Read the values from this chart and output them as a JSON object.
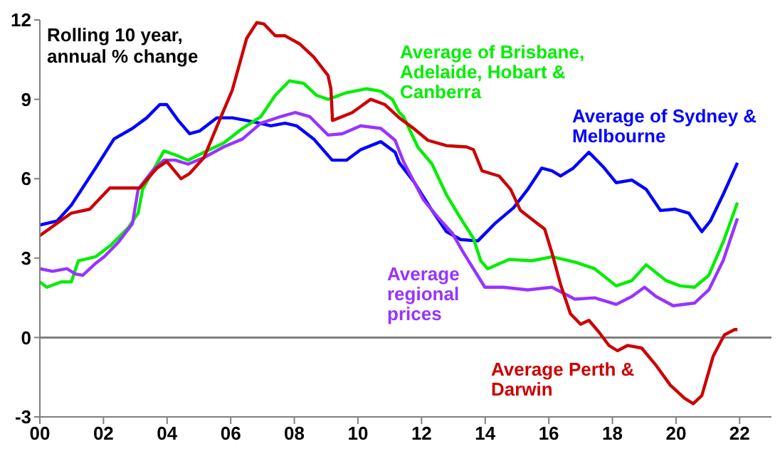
{
  "chart_data": {
    "type": "line",
    "title": "Rolling 10 year, annual % change",
    "xlim": [
      2000,
      2023
    ],
    "xticks": [
      {
        "value": 2000,
        "label": "00"
      },
      {
        "value": 2002,
        "label": "02"
      },
      {
        "value": 2004,
        "label": "04"
      },
      {
        "value": 2006,
        "label": "06"
      },
      {
        "value": 2008,
        "label": "08"
      },
      {
        "value": 2010,
        "label": "10"
      },
      {
        "value": 2012,
        "label": "12"
      },
      {
        "value": 2014,
        "label": "14"
      },
      {
        "value": 2016,
        "label": "16"
      },
      {
        "value": 2018,
        "label": "18"
      },
      {
        "value": 2020,
        "label": "20"
      },
      {
        "value": 2022,
        "label": "22"
      }
    ],
    "ylim": [
      -3,
      12
    ],
    "yticks": [
      -3,
      0,
      3,
      6,
      9,
      12
    ],
    "grid": false,
    "legend": false,
    "marker": "none",
    "line_style": "solid",
    "ref_lines": [
      {
        "axis": "y",
        "value": 0,
        "color": "#808080"
      }
    ],
    "series": [
      {
        "name": "Average of Sydney & Melbourne",
        "color": "#0000ff",
        "x": [
          2000,
          2000.54,
          2000.99,
          2001.75,
          2002.33,
          2002.91,
          2003.36,
          2003.77,
          2003.99,
          2004.35,
          2004.71,
          2005.02,
          2005.56,
          2006.05,
          2006.5,
          2006.91,
          2007.26,
          2007.71,
          2008.07,
          2008.61,
          2009.19,
          2009.64,
          2010.09,
          2010.72,
          2011.17,
          2011.3,
          2011.75,
          2012.33,
          2012.78,
          2013.23,
          2013.77,
          2014.3,
          2014.89,
          2015.34,
          2015.78,
          2016.1,
          2016.37,
          2016.77,
          2017.26,
          2017.71,
          2018.12,
          2018.61,
          2019.06,
          2019.51,
          2019.96,
          2020.4,
          2020.81,
          2021.08,
          2021.48,
          2021.93
        ],
        "values": [
          4.25,
          4.4,
          5.0,
          6.4,
          7.5,
          7.9,
          8.3,
          8.8,
          8.8,
          8.2,
          7.7,
          7.8,
          8.3,
          8.3,
          8.2,
          8.1,
          8.0,
          8.1,
          8.0,
          7.5,
          6.7,
          6.7,
          7.1,
          7.4,
          7.0,
          6.6,
          5.9,
          4.8,
          4.0,
          3.7,
          3.65,
          4.3,
          4.9,
          5.6,
          6.4,
          6.3,
          6.1,
          6.4,
          7.0,
          6.45,
          5.85,
          5.95,
          5.6,
          4.8,
          4.85,
          4.7,
          4.0,
          4.4,
          5.4,
          6.6
        ]
      },
      {
        "name": "Average of Brisbane, Adelaide, Hobart & Canberra",
        "color": "#00ee00",
        "x": [
          2000,
          2000.22,
          2000.67,
          2000.99,
          2001.21,
          2001.75,
          2002.24,
          2002.78,
          2003.09,
          2003.23,
          2003.9,
          2004.26,
          2004.66,
          2005.16,
          2005.78,
          2006.37,
          2006.95,
          2007.4,
          2007.85,
          2008.3,
          2008.7,
          2009.06,
          2009.64,
          2010.27,
          2010.72,
          2011.08,
          2011.3,
          2011.43,
          2011.88,
          2012.33,
          2012.78,
          2013.23,
          2013.63,
          2013.86,
          2014.08,
          2014.75,
          2015.47,
          2016.1,
          2016.82,
          2017.44,
          2018.12,
          2018.61,
          2019.06,
          2019.69,
          2020.13,
          2020.58,
          2021.03,
          2021.48,
          2021.93
        ],
        "values": [
          2.1,
          1.9,
          2.1,
          2.1,
          2.9,
          3.05,
          3.5,
          4.15,
          4.7,
          5.6,
          7.05,
          6.9,
          6.7,
          7.0,
          7.35,
          7.9,
          8.35,
          9.15,
          9.7,
          9.6,
          9.15,
          9.0,
          9.25,
          9.4,
          9.3,
          9.0,
          8.5,
          8.35,
          7.2,
          6.55,
          5.4,
          4.5,
          3.75,
          2.9,
          2.6,
          2.95,
          2.9,
          3.05,
          2.85,
          2.6,
          1.95,
          2.15,
          2.75,
          2.15,
          1.95,
          1.9,
          2.35,
          3.6,
          5.1
        ]
      },
      {
        "name": "Average regional prices",
        "color": "#9933ff",
        "x": [
          2000,
          2000.4,
          2000.85,
          2001.12,
          2001.35,
          2001.75,
          2002.02,
          2002.47,
          2002.91,
          2003.09,
          2003.54,
          2003.9,
          2004.26,
          2004.66,
          2005.16,
          2005.78,
          2006.37,
          2006.95,
          2007.58,
          2008.03,
          2008.48,
          2009.06,
          2009.51,
          2010.09,
          2010.72,
          2011.17,
          2011.43,
          2012.06,
          2012.51,
          2012.96,
          2013.32,
          2013.99,
          2014.57,
          2015.34,
          2016.1,
          2016.82,
          2017.44,
          2018.12,
          2018.61,
          2019.01,
          2019.37,
          2019.91,
          2020.58,
          2021.03,
          2021.48,
          2021.93
        ],
        "values": [
          2.6,
          2.5,
          2.6,
          2.4,
          2.35,
          2.8,
          3.05,
          3.6,
          4.3,
          5.6,
          6.3,
          6.7,
          6.7,
          6.55,
          6.8,
          7.2,
          7.5,
          8.1,
          8.35,
          8.5,
          8.35,
          7.65,
          7.7,
          8.0,
          7.9,
          7.45,
          6.65,
          5.2,
          4.55,
          3.95,
          3.2,
          1.9,
          1.9,
          1.8,
          1.9,
          1.45,
          1.5,
          1.25,
          1.55,
          1.9,
          1.55,
          1.2,
          1.3,
          1.8,
          2.9,
          4.5
        ]
      },
      {
        "name": "Average Perth & Darwin",
        "color": "#cc0000",
        "x": [
          2000,
          2000.99,
          2001.57,
          2002.2,
          2002.65,
          2003.14,
          2003.68,
          2003.99,
          2004.44,
          2004.71,
          2005.16,
          2005.61,
          2006.05,
          2006.5,
          2006.82,
          2007.04,
          2007.4,
          2007.71,
          2008.16,
          2008.61,
          2009.06,
          2009.15,
          2009.2,
          2009.82,
          2010.4,
          2010.85,
          2011.3,
          2011.75,
          2012.2,
          2012.78,
          2013.41,
          2013.63,
          2013.9,
          2014.44,
          2014.8,
          2015.11,
          2015.65,
          2015.87,
          2016.1,
          2016.37,
          2016.68,
          2017.0,
          2017.26,
          2017.58,
          2017.89,
          2018.16,
          2018.48,
          2018.92,
          2019.37,
          2019.82,
          2020.27,
          2020.54,
          2020.81,
          2021.17,
          2021.52,
          2021.84,
          2021.93
        ],
        "values": [
          3.85,
          4.7,
          4.85,
          5.65,
          5.65,
          5.65,
          6.4,
          6.65,
          6.0,
          6.2,
          6.8,
          8.1,
          9.35,
          11.3,
          11.9,
          11.85,
          11.4,
          11.4,
          11.1,
          10.6,
          9.9,
          9.4,
          8.2,
          8.5,
          9.0,
          8.8,
          8.3,
          7.9,
          7.45,
          7.25,
          7.2,
          7.1,
          6.3,
          6.1,
          5.6,
          4.8,
          4.3,
          4.1,
          3.2,
          2.0,
          0.9,
          0.5,
          0.65,
          0.2,
          -0.3,
          -0.5,
          -0.3,
          -0.4,
          -1.05,
          -1.8,
          -2.3,
          -2.5,
          -2.2,
          -0.7,
          0.1,
          0.3,
          0.3
        ]
      }
    ]
  }
}
